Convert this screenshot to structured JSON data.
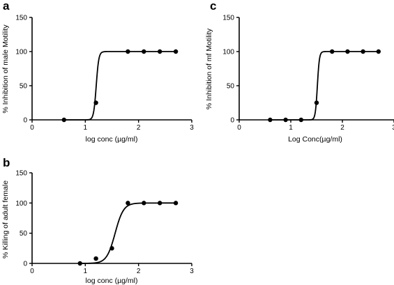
{
  "chart_data": [
    {
      "panel": "a",
      "type": "scatter",
      "xlabel": "log conc (µg/ml)",
      "ylabel": "% Inhibition of male Motility",
      "xlim": [
        0,
        3
      ],
      "ylim": [
        0,
        150
      ],
      "xticks": [
        "0",
        "1",
        "2",
        "3"
      ],
      "yticks": [
        "0",
        "50",
        "100",
        "150"
      ],
      "points": {
        "x": [
          0.6,
          1.2,
          1.8,
          2.1,
          2.4,
          2.7
        ],
        "y": [
          0,
          25,
          100,
          100,
          100,
          100
        ]
      },
      "fit": {
        "bottom": 0,
        "top": 100,
        "logEC50": 1.205,
        "hill": 18
      }
    },
    {
      "panel": "c",
      "type": "scatter",
      "xlabel": "Log Conc(µg/ml)",
      "ylabel": "% Inhibition of mf Motility",
      "xlim": [
        0,
        3
      ],
      "ylim": [
        0,
        150
      ],
      "xticks": [
        "0",
        "1",
        "2",
        "3"
      ],
      "yticks": [
        "0",
        "50",
        "100",
        "150"
      ],
      "points": {
        "x": [
          0.6,
          0.9,
          1.2,
          1.5,
          1.8,
          2.1,
          2.4,
          2.7
        ],
        "y": [
          0,
          0,
          0,
          25,
          100,
          100,
          100,
          100
        ]
      },
      "fit": {
        "bottom": 0,
        "top": 100,
        "logEC50": 1.515,
        "hill": 22
      }
    },
    {
      "panel": "b",
      "type": "scatter",
      "xlabel": "log conc (µg/ml)",
      "ylabel": "% Killing of adult female",
      "xlim": [
        0,
        3
      ],
      "ylim": [
        0,
        150
      ],
      "xticks": [
        "0",
        "1",
        "2",
        "3"
      ],
      "yticks": [
        "0",
        "50",
        "100",
        "150"
      ],
      "points": {
        "x": [
          0.9,
          1.2,
          1.5,
          1.8,
          2.1,
          2.4,
          2.7
        ],
        "y": [
          0,
          8,
          25,
          100,
          100,
          100,
          100
        ]
      },
      "fit": {
        "bottom": 0,
        "top": 100,
        "logEC50": 1.56,
        "hill": 5.5
      }
    }
  ]
}
